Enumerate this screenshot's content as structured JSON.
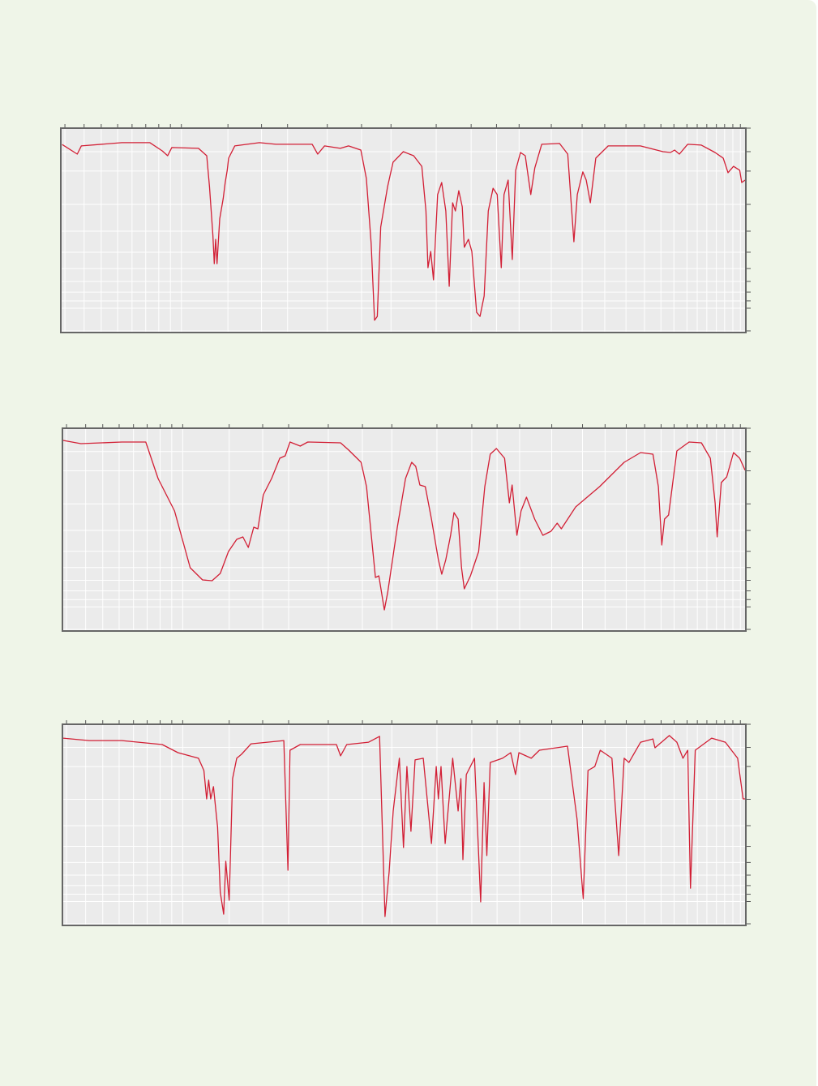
{
  "chart_data": [
    {
      "type": "line",
      "xlim": [
        0,
        100
      ],
      "ylim": [
        0,
        100
      ],
      "grid": true,
      "xticks": [
        0.6,
        3.4,
        5.9,
        8.3,
        10.4,
        12.4,
        14.3,
        16.0,
        17.6,
        24.4,
        29.3,
        33.1,
        38.9,
        43.9,
        48.2,
        54.8,
        59.9,
        63.6,
        66.9,
        71.6,
        76.1,
        79.4,
        82.5,
        85.2,
        87.6,
        89.5,
        91.4,
        92.9,
        94.3,
        95.7,
        96.9,
        98.1,
        99.2
      ],
      "yticks": [
        0.8,
        11.9,
        15.5,
        19.8,
        25,
        31.3,
        39.3,
        49.6,
        62.7,
        79,
        88.5,
        100
      ],
      "x": [
        0.2,
        2.4,
        3,
        8.9,
        13,
        14.8,
        15.6,
        16.2,
        20.1,
        21.3,
        21.7,
        22.2,
        22.4,
        22.6,
        22.8,
        23.2,
        23.7,
        24,
        24.3,
        24.5,
        25.4,
        29,
        31.4,
        36.7,
        37.5,
        38.5,
        40.8,
        42,
        43.8,
        44.6,
        45.3,
        45.8,
        46.2,
        46.7,
        47.7,
        48.5,
        50,
        51.5,
        52.7,
        53.3,
        53.6,
        54,
        54.4,
        55,
        55.6,
        56.2,
        56.7,
        57.2,
        57.6,
        58.1,
        58.6,
        58.9,
        59.5,
        60,
        60.7,
        61.2,
        61.8,
        62.4,
        63.1,
        63.7,
        64.3,
        64.7,
        65.3,
        65.9,
        66.4,
        67.1,
        67.8,
        68.6,
        69.2,
        70.2,
        72.8,
        74,
        74.9,
        75.4,
        76.2,
        76.7,
        77.3,
        78.1,
        79.9,
        84.6,
        87.9,
        89,
        89.6,
        90.3,
        91.5,
        93.5,
        95.5,
        96.7,
        97.4,
        98.2,
        99.1,
        99.4,
        99.9
      ],
      "series": [
        {
          "color": "#d21f35",
          "values": [
            92,
            87.3,
            91.3,
            92.9,
            92.9,
            88.9,
            86.5,
            90.5,
            90.1,
            86.5,
            71.4,
            47.6,
            33.7,
            45.6,
            33.7,
            55.6,
            65.5,
            73.4,
            79.4,
            85.3,
            91.3,
            92.9,
            92.1,
            92.1,
            87.3,
            91.3,
            90.1,
            91.3,
            89.3,
            75.4,
            43.7,
            6,
            7.9,
            51.6,
            71.4,
            83.3,
            88.5,
            86.5,
            81.3,
            59.5,
            31.7,
            39.7,
            25.8,
            67.5,
            73.4,
            59.5,
            22.6,
            63.5,
            59.5,
            69.4,
            61.5,
            41.7,
            45.6,
            39.7,
            9.9,
            7.9,
            17.9,
            59.5,
            70.6,
            67.5,
            31.7,
            67.5,
            74.6,
            35.7,
            79.4,
            88.1,
            86.5,
            67.5,
            80.6,
            92.1,
            92.5,
            87.3,
            44.4,
            67.5,
            78.6,
            74.6,
            63.5,
            85.3,
            91.3,
            91.3,
            88.5,
            88.1,
            89.3,
            87.3,
            92.1,
            91.7,
            88.1,
            85.3,
            78.2,
            81.3,
            79.4,
            73.4,
            74.6
          ]
        }
      ]
    },
    {
      "type": "line",
      "xlim": [
        0,
        100
      ],
      "ylim": [
        0,
        100
      ],
      "grid": true,
      "xticks": [
        0.6,
        3.4,
        5.9,
        8.3,
        10.4,
        12.4,
        14.3,
        16.0,
        17.6,
        24.4,
        29.3,
        33.1,
        38.9,
        43.9,
        48.2,
        54.8,
        59.9,
        63.6,
        66.9,
        71.6,
        76.1,
        79.4,
        82.5,
        85.2,
        87.6,
        89.5,
        91.4,
        92.9,
        94.3,
        95.7,
        96.9,
        98.1,
        99.2
      ],
      "yticks": [
        0.8,
        11.9,
        15.5,
        19.8,
        25,
        31.3,
        39.3,
        49.6,
        62.7,
        79,
        88.5,
        100
      ],
      "x": [
        0.1,
        2.7,
        8.7,
        12.2,
        14,
        16.4,
        18.7,
        20.5,
        21.9,
        23.1,
        24.3,
        25.5,
        26.4,
        27.2,
        28,
        28.6,
        29.4,
        30.6,
        31.8,
        32.6,
        33.3,
        34.8,
        35.9,
        40.7,
        41.9,
        43.7,
        44.5,
        45.2,
        45.8,
        46.3,
        47.1,
        47.6,
        49,
        50.2,
        51.1,
        51.7,
        52.3,
        53.1,
        54,
        55,
        55.5,
        56.1,
        56.8,
        57.3,
        57.9,
        58.4,
        58.8,
        59.7,
        60.9,
        61.8,
        62.6,
        63.5,
        64.7,
        65.4,
        65.8,
        66.5,
        67.1,
        67.9,
        69.1,
        70.3,
        71.5,
        72.4,
        73,
        75.1,
        78.6,
        82.2,
        84.6,
        86.4,
        87.2,
        87.7,
        88.1,
        88.7,
        89.9,
        91.7,
        93.5,
        94.8,
        95.5,
        95.8,
        96.4,
        97.2,
        98.2,
        99.1,
        99.9
      ],
      "series": [
        {
          "color": "#d21f35",
          "values": [
            94,
            92.4,
            93.2,
            93.2,
            75.2,
            59.2,
            31.2,
            25.2,
            24.8,
            28.4,
            39.2,
            45.2,
            46.4,
            41.2,
            51.2,
            50.4,
            67.2,
            75.2,
            85.2,
            86.4,
            93.2,
            91.2,
            93.2,
            92.8,
            89.2,
            83.2,
            71.2,
            47.2,
            26.4,
            27.2,
            10.4,
            19.2,
            51.2,
            75.2,
            83.2,
            81.2,
            72,
            71.2,
            55.2,
            35.2,
            28,
            35.2,
            47.2,
            58.4,
            55.2,
            31.2,
            20.8,
            27.2,
            39.2,
            71.2,
            87.2,
            90,
            85.2,
            63.2,
            72,
            47.2,
            59.2,
            66,
            55.2,
            47.2,
            49.2,
            53.2,
            50.4,
            61.2,
            71.2,
            83.2,
            88,
            87.2,
            71.2,
            42.4,
            55.2,
            57.2,
            88.8,
            93.2,
            92.8,
            85.2,
            63.2,
            46.4,
            73.2,
            76,
            88,
            85.2,
            79.2
          ]
        }
      ]
    },
    {
      "type": "line",
      "xlim": [
        0,
        100
      ],
      "ylim": [
        0,
        100
      ],
      "grid": true,
      "xticks": [
        0.6,
        3.4,
        5.9,
        8.3,
        10.4,
        12.4,
        14.3,
        16.0,
        17.6,
        24.4,
        29.3,
        33.1,
        38.9,
        43.9,
        48.2,
        54.8,
        59.9,
        63.6,
        66.9,
        71.6,
        76.1,
        79.4,
        82.5,
        85.2,
        87.6,
        89.5,
        91.4,
        92.9,
        94.3,
        95.7,
        96.9,
        98.1,
        99.2
      ],
      "yticks": [
        0.8,
        11.9,
        15.5,
        19.8,
        25,
        31.3,
        39.3,
        49.6,
        62.7,
        79,
        88.5,
        100
      ],
      "x": [
        0.1,
        3.9,
        8.7,
        14.6,
        16.9,
        19.9,
        20.7,
        21.1,
        21.4,
        21.7,
        22.1,
        22.7,
        23.1,
        23.6,
        23.9,
        24.4,
        24.9,
        25.5,
        26.2,
        27.6,
        32.4,
        33,
        33.3,
        34.8,
        40.1,
        40.7,
        41.6,
        44.8,
        46.4,
        47.2,
        47.8,
        48.4,
        49.3,
        49.9,
        50.4,
        51,
        51.6,
        52.8,
        54,
        54.7,
        55,
        55.4,
        56,
        57.1,
        57.9,
        58.3,
        58.6,
        59.1,
        60.3,
        61.2,
        61.7,
        62.1,
        62.6,
        64.4,
        65.6,
        66.3,
        66.8,
        68.6,
        69.8,
        73.9,
        75.3,
        76.2,
        76.9,
        77.9,
        78.7,
        80.4,
        81.4,
        82.2,
        82.9,
        84.6,
        86.4,
        86.7,
        88.8,
        89.9,
        90.8,
        91.5,
        91.9,
        92.6,
        95,
        97,
        98.8,
        99.6,
        100
      ],
      "series": [
        {
          "color": "#d21f35",
          "values": [
            93.1,
            91.9,
            91.9,
            89.9,
            85.9,
            83.1,
            77,
            62.9,
            72.2,
            62.9,
            69,
            48.8,
            16.5,
            5.6,
            31.9,
            12.5,
            73,
            83.1,
            85.1,
            90.3,
            91.9,
            27.4,
            87.1,
            89.9,
            89.9,
            84.3,
            89.9,
            91.1,
            94,
            4.4,
            26.6,
            56.9,
            83.1,
            38.7,
            79,
            46.8,
            82.3,
            83.1,
            40.7,
            79,
            62.9,
            79,
            40.7,
            83.1,
            56.9,
            73,
            32.7,
            75,
            83.1,
            11.7,
            71,
            34.7,
            81,
            83.1,
            85.9,
            75,
            85.9,
            83.1,
            87.1,
            89.1,
            52.8,
            13.3,
            77,
            79,
            87.1,
            83.1,
            34.7,
            83.1,
            81,
            91.1,
            92.7,
            88.3,
            94.4,
            91.1,
            83.1,
            87.1,
            18.5,
            87.1,
            93.1,
            91.1,
            83.1,
            62.9,
            62.9
          ]
        }
      ]
    }
  ]
}
